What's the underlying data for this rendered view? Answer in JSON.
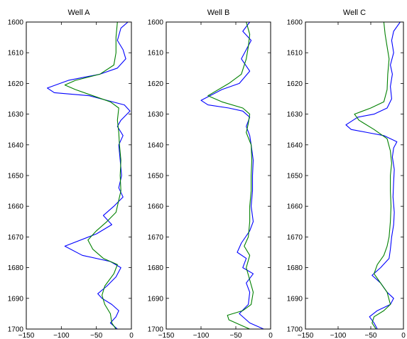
{
  "chart_data": [
    {
      "type": "line",
      "title": "Well A",
      "xlim": [
        -150,
        0
      ],
      "ylim": [
        1600,
        1700
      ],
      "y_inverted": true,
      "xticks": [
        -150,
        -100,
        -50,
        0
      ],
      "yticks": [
        1600,
        1610,
        1620,
        1630,
        1640,
        1650,
        1660,
        1670,
        1680,
        1690,
        1700
      ],
      "series": [
        {
          "color": "#0000ff",
          "points": [
            [
              -5,
              1600
            ],
            [
              -15,
              1602
            ],
            [
              -20,
              1606
            ],
            [
              -12,
              1609
            ],
            [
              -8,
              1612
            ],
            [
              -20,
              1615
            ],
            [
              -45,
              1617
            ],
            [
              -90,
              1619
            ],
            [
              -120,
              1621.5
            ],
            [
              -110,
              1623
            ],
            [
              -60,
              1624
            ],
            [
              -10,
              1627
            ],
            [
              -2,
              1629
            ],
            [
              -15,
              1632
            ],
            [
              -20,
              1634
            ],
            [
              -12,
              1637
            ],
            [
              -18,
              1640
            ],
            [
              -16,
              1645
            ],
            [
              -14,
              1650
            ],
            [
              -18,
              1654
            ],
            [
              -12,
              1657
            ],
            [
              -25,
              1660
            ],
            [
              -40,
              1663
            ],
            [
              -28,
              1666
            ],
            [
              -50,
              1669
            ],
            [
              -95,
              1673
            ],
            [
              -70,
              1676
            ],
            [
              -30,
              1678
            ],
            [
              -15,
              1680
            ],
            [
              -22,
              1683
            ],
            [
              -35,
              1686
            ],
            [
              -48,
              1688.5
            ],
            [
              -42,
              1690
            ],
            [
              -28,
              1692
            ],
            [
              -18,
              1694
            ],
            [
              -22,
              1696
            ],
            [
              -30,
              1698
            ],
            [
              -20,
              1700
            ]
          ]
        },
        {
          "color": "#008000",
          "points": [
            [
              -20,
              1600
            ],
            [
              -22,
              1605
            ],
            [
              -22,
              1610
            ],
            [
              -25,
              1614
            ],
            [
              -45,
              1617
            ],
            [
              -80,
              1619
            ],
            [
              -95,
              1620.5
            ],
            [
              -80,
              1622
            ],
            [
              -55,
              1624
            ],
            [
              -30,
              1626
            ],
            [
              -18,
              1628
            ],
            [
              -20,
              1632
            ],
            [
              -18,
              1636
            ],
            [
              -17,
              1640
            ],
            [
              -15,
              1645
            ],
            [
              -16,
              1650
            ],
            [
              -15,
              1655
            ],
            [
              -18,
              1658
            ],
            [
              -22,
              1662
            ],
            [
              -35,
              1665
            ],
            [
              -50,
              1668
            ],
            [
              -62,
              1671
            ],
            [
              -55,
              1674
            ],
            [
              -40,
              1677
            ],
            [
              -20,
              1679
            ],
            [
              -25,
              1682
            ],
            [
              -38,
              1686
            ],
            [
              -42,
              1689
            ],
            [
              -38,
              1692
            ],
            [
              -30,
              1695
            ],
            [
              -28,
              1698
            ],
            [
              -22,
              1700
            ]
          ]
        }
      ]
    },
    {
      "type": "line",
      "title": "Well B",
      "xlim": [
        -150,
        0
      ],
      "ylim": [
        1600,
        1700
      ],
      "y_inverted": true,
      "xticks": [
        -150,
        -100,
        -50,
        0
      ],
      "yticks": [
        1600,
        1610,
        1620,
        1630,
        1640,
        1650,
        1660,
        1670,
        1680,
        1690,
        1700
      ],
      "series": [
        {
          "color": "#0000ff",
          "points": [
            [
              -30,
              1600
            ],
            [
              -40,
              1603
            ],
            [
              -28,
              1606
            ],
            [
              -35,
              1609
            ],
            [
              -42,
              1612
            ],
            [
              -30,
              1616
            ],
            [
              -45,
              1620
            ],
            [
              -70,
              1622
            ],
            [
              -100,
              1625.5
            ],
            [
              -90,
              1627
            ],
            [
              -60,
              1628
            ],
            [
              -40,
              1629
            ],
            [
              -30,
              1631
            ],
            [
              -35,
              1634
            ],
            [
              -30,
              1637
            ],
            [
              -28,
              1640
            ],
            [
              -25,
              1645
            ],
            [
              -26,
              1650
            ],
            [
              -26,
              1655
            ],
            [
              -28,
              1660
            ],
            [
              -25,
              1665
            ],
            [
              -30,
              1668
            ],
            [
              -42,
              1672
            ],
            [
              -48,
              1675
            ],
            [
              -35,
              1677
            ],
            [
              -40,
              1680
            ],
            [
              -25,
              1682
            ],
            [
              -35,
              1685
            ],
            [
              -30,
              1688
            ],
            [
              -32,
              1692
            ],
            [
              -45,
              1695
            ],
            [
              -30,
              1698
            ],
            [
              -10,
              1700
            ]
          ]
        },
        {
          "color": "#008000",
          "points": [
            [
              -35,
              1600
            ],
            [
              -30,
              1604
            ],
            [
              -32,
              1608
            ],
            [
              -35,
              1612
            ],
            [
              -42,
              1617
            ],
            [
              -60,
              1620
            ],
            [
              -90,
              1624
            ],
            [
              -70,
              1626
            ],
            [
              -40,
              1628
            ],
            [
              -30,
              1630
            ],
            [
              -32,
              1633
            ],
            [
              -35,
              1636
            ],
            [
              -28,
              1640
            ],
            [
              -27,
              1645
            ],
            [
              -28,
              1650
            ],
            [
              -28,
              1655
            ],
            [
              -30,
              1660
            ],
            [
              -30,
              1665
            ],
            [
              -32,
              1670
            ],
            [
              -38,
              1673
            ],
            [
              -30,
              1676
            ],
            [
              -35,
              1680
            ],
            [
              -30,
              1684
            ],
            [
              -25,
              1688
            ],
            [
              -28,
              1692
            ],
            [
              -40,
              1694
            ],
            [
              -62,
              1695.5
            ],
            [
              -60,
              1697
            ],
            [
              -40,
              1699
            ],
            [
              -30,
              1700
            ]
          ]
        }
      ]
    },
    {
      "type": "line",
      "title": "Well C",
      "xlim": [
        -150,
        0
      ],
      "ylim": [
        1600,
        1700
      ],
      "y_inverted": true,
      "xticks": [
        -150,
        -100,
        -50,
        0
      ],
      "yticks": [
        1600,
        1610,
        1620,
        1630,
        1640,
        1650,
        1660,
        1670,
        1680,
        1690,
        1700
      ],
      "series": [
        {
          "color": "#0000ff",
          "points": [
            [
              -5,
              1600
            ],
            [
              -15,
              1603
            ],
            [
              -18,
              1606
            ],
            [
              -15,
              1610
            ],
            [
              -20,
              1614
            ],
            [
              -17,
              1617
            ],
            [
              -20,
              1621
            ],
            [
              -18,
              1625
            ],
            [
              -25,
              1628
            ],
            [
              -45,
              1630
            ],
            [
              -70,
              1631
            ],
            [
              -88,
              1633.5
            ],
            [
              -80,
              1635
            ],
            [
              -55,
              1636
            ],
            [
              -30,
              1637
            ],
            [
              -10,
              1639
            ],
            [
              -15,
              1641
            ],
            [
              -17,
              1644
            ],
            [
              -14,
              1648
            ],
            [
              -15,
              1652
            ],
            [
              -16,
              1657
            ],
            [
              -14,
              1662
            ],
            [
              -15,
              1666
            ],
            [
              -18,
              1670
            ],
            [
              -20,
              1674
            ],
            [
              -22,
              1677
            ],
            [
              -35,
              1680
            ],
            [
              -48,
              1682.5
            ],
            [
              -35,
              1685
            ],
            [
              -25,
              1688
            ],
            [
              -15,
              1690
            ],
            [
              -20,
              1692
            ],
            [
              -40,
              1694
            ],
            [
              -52,
              1696
            ],
            [
              -45,
              1698
            ],
            [
              -40,
              1700
            ]
          ]
        },
        {
          "color": "#008000",
          "points": [
            [
              -30,
              1600
            ],
            [
              -28,
              1604
            ],
            [
              -25,
              1608
            ],
            [
              -22,
              1612
            ],
            [
              -24,
              1617
            ],
            [
              -25,
              1622
            ],
            [
              -30,
              1626
            ],
            [
              -50,
              1628
            ],
            [
              -75,
              1630
            ],
            [
              -68,
              1632
            ],
            [
              -45,
              1635
            ],
            [
              -25,
              1638
            ],
            [
              -20,
              1642
            ],
            [
              -18,
              1646
            ],
            [
              -20,
              1650
            ],
            [
              -20,
              1655
            ],
            [
              -19,
              1660
            ],
            [
              -20,
              1665
            ],
            [
              -22,
              1670
            ],
            [
              -25,
              1673
            ],
            [
              -30,
              1676
            ],
            [
              -40,
              1679
            ],
            [
              -45,
              1682
            ],
            [
              -35,
              1685
            ],
            [
              -25,
              1688
            ],
            [
              -20,
              1692
            ],
            [
              -30,
              1694
            ],
            [
              -45,
              1696
            ],
            [
              -48,
              1698
            ],
            [
              -42,
              1700
            ]
          ]
        }
      ]
    }
  ]
}
